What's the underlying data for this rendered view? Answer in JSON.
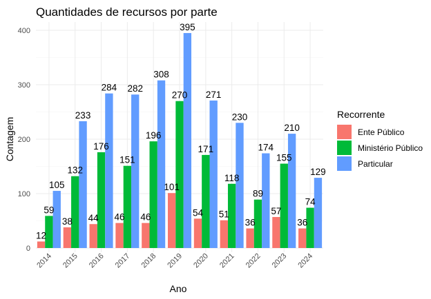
{
  "chart_data": {
    "type": "bar",
    "title": "Quantidades de recursos por parte",
    "xlabel": "Ano",
    "ylabel": "Contagem",
    "categories": [
      "2014",
      "2015",
      "2016",
      "2017",
      "2018",
      "2019",
      "2020",
      "2021",
      "2022",
      "2023",
      "2024"
    ],
    "ylim": [
      0,
      420
    ],
    "yticks": [
      0,
      100,
      200,
      300,
      400
    ],
    "grid": true,
    "legend": {
      "title": "Recorrente",
      "position": "right"
    },
    "series": [
      {
        "name": "Ente Público",
        "color": "#f8766d",
        "values": [
          12,
          38,
          44,
          46,
          46,
          101,
          54,
          51,
          36,
          57,
          36
        ]
      },
      {
        "name": "Ministério Público",
        "color": "#00ba38",
        "values": [
          59,
          132,
          176,
          151,
          196,
          270,
          171,
          118,
          89,
          155,
          74
        ]
      },
      {
        "name": "Particular",
        "color": "#619cff",
        "values": [
          105,
          233,
          284,
          282,
          308,
          395,
          271,
          230,
          174,
          210,
          129
        ]
      }
    ]
  }
}
